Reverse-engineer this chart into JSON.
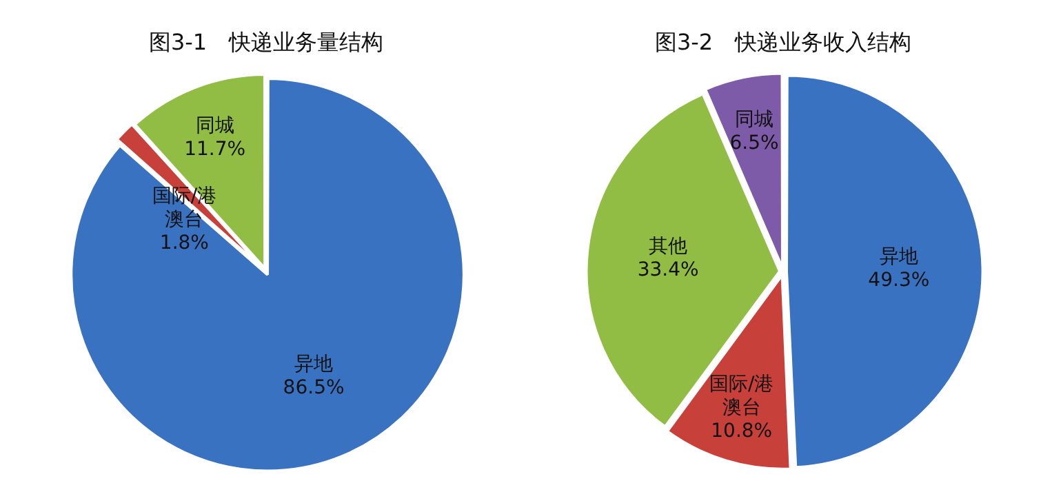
{
  "chart_data": [
    {
      "type": "pie",
      "title": "图3-1　快递业务量结构",
      "categories": [
        "异地",
        "国际/港澳台",
        "同城"
      ],
      "values": [
        86.5,
        1.8,
        11.7
      ],
      "colors": [
        "#3a72c2",
        "#c8403a",
        "#92bd44"
      ],
      "value_labels": [
        "86.5%",
        "1.8%",
        "11.7%"
      ],
      "legend": false
    },
    {
      "type": "pie",
      "title": "图3-2　快递业务收入结构",
      "categories": [
        "异地",
        "国际/港澳台",
        "其他",
        "同城"
      ],
      "values": [
        49.3,
        10.8,
        33.4,
        6.5
      ],
      "colors": [
        "#3a72c2",
        "#c8403a",
        "#92bd44",
        "#7d5ba8"
      ],
      "value_labels": [
        "49.3%",
        "10.8%",
        "33.4%",
        "6.5%"
      ],
      "legend": false
    }
  ]
}
